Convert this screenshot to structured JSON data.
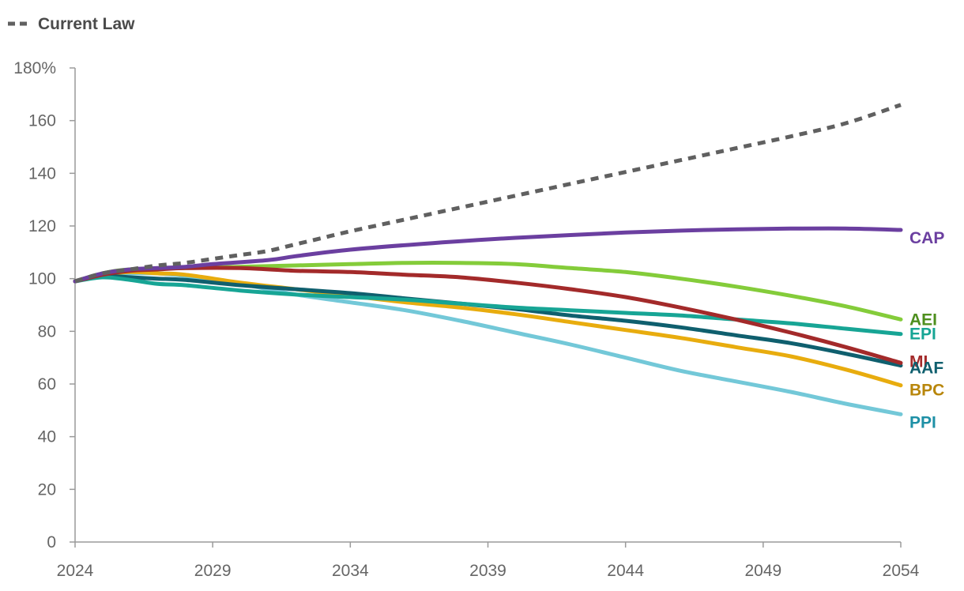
{
  "chart_data": {
    "type": "line",
    "title": "",
    "xlabel": "",
    "ylabel": "",
    "xlim": [
      2024,
      2054
    ],
    "ylim": [
      0,
      180
    ],
    "x_ticks": [
      2024,
      2029,
      2034,
      2039,
      2044,
      2049,
      2054
    ],
    "y_ticks": [
      0,
      20,
      40,
      60,
      80,
      100,
      120,
      140,
      160,
      180
    ],
    "y_tick_labels": [
      "0",
      "20",
      "40",
      "60",
      "80",
      "100",
      "120",
      "140",
      "160",
      "180%"
    ],
    "legend": {
      "position": "top-left",
      "entries": [
        "Current Law"
      ]
    },
    "grid": false,
    "series": [
      {
        "name": "Current Law",
        "color": "#606060",
        "dashed": true,
        "end_label": "",
        "x": [
          2024,
          2025,
          2026,
          2027,
          2028,
          2029,
          2030,
          2031,
          2032,
          2033,
          2034,
          2036,
          2038,
          2040,
          2042,
          2044,
          2046,
          2048,
          2050,
          2052,
          2054
        ],
        "values": [
          99,
          102,
          103.5,
          105,
          106,
          107.5,
          109,
          110.5,
          113,
          115.5,
          118,
          122.5,
          127,
          131.5,
          136,
          140.5,
          145,
          149.5,
          154,
          159,
          166
        ]
      },
      {
        "name": "CAP",
        "color": "#6b3fa0",
        "dashed": false,
        "end_label": "CAP",
        "x": [
          2024,
          2025,
          2026,
          2027,
          2028,
          2029,
          2031,
          2032,
          2034,
          2037,
          2040,
          2044,
          2047,
          2050,
          2052,
          2054
        ],
        "values": [
          99,
          102,
          103.5,
          104,
          104.5,
          105.5,
          107,
          108.5,
          111,
          113.5,
          115.5,
          117.5,
          118.5,
          119,
          119,
          118.5
        ]
      },
      {
        "name": "AEI",
        "color": "#84cc3a",
        "dashed": false,
        "end_label": "AEI",
        "label_color": "#4e8f1e",
        "x": [
          2024,
          2025,
          2026,
          2028,
          2030,
          2032,
          2034,
          2036,
          2038,
          2040,
          2042,
          2044,
          2046,
          2048,
          2050,
          2052,
          2054
        ],
        "values": [
          99,
          102,
          103.5,
          104,
          104.5,
          105,
          105.5,
          106,
          106,
          105.5,
          104,
          102.5,
          100,
          97,
          93.5,
          89.5,
          84.5
        ]
      },
      {
        "name": "EPI",
        "color": "#17a595",
        "dashed": false,
        "end_label": "EPI",
        "x": [
          2024,
          2025,
          2026,
          2027,
          2028,
          2030,
          2032,
          2034,
          2036,
          2038,
          2040,
          2042,
          2044,
          2046,
          2048,
          2050,
          2052,
          2054
        ],
        "values": [
          99,
          100.5,
          99.5,
          98,
          97.5,
          95.5,
          94,
          93,
          92,
          90.5,
          89,
          88,
          87,
          86,
          84.5,
          83,
          81,
          79
        ]
      },
      {
        "name": "MI",
        "color": "#a32a2a",
        "dashed": false,
        "end_label": "MI",
        "x": [
          2024,
          2025,
          2026,
          2027,
          2028,
          2030,
          2032,
          2034,
          2036,
          2038,
          2040,
          2042,
          2044,
          2046,
          2048,
          2050,
          2052,
          2054
        ],
        "values": [
          99,
          101.5,
          103,
          103.5,
          104,
          104,
          103,
          102.5,
          101.5,
          100.5,
          98.5,
          96,
          93,
          89,
          84.5,
          79.5,
          74,
          68
        ]
      },
      {
        "name": "AAF",
        "color": "#0f5f6e",
        "dashed": false,
        "end_label": "AAF",
        "x": [
          2024,
          2025,
          2026,
          2027,
          2028,
          2030,
          2032,
          2034,
          2036,
          2038,
          2040,
          2042,
          2044,
          2046,
          2048,
          2050,
          2052,
          2054
        ],
        "values": [
          99,
          101,
          100.5,
          100,
          99.5,
          97.5,
          96,
          94.5,
          92.5,
          90.5,
          88.5,
          86,
          84,
          81.5,
          78.5,
          75.5,
          71.5,
          67
        ]
      },
      {
        "name": "BPC",
        "color": "#e8ac0e",
        "dashed": false,
        "end_label": "BPC",
        "label_color": "#b8860b",
        "x": [
          2024,
          2025,
          2026,
          2027,
          2028,
          2030,
          2032,
          2034,
          2036,
          2038,
          2040,
          2042,
          2044,
          2046,
          2048,
          2050,
          2052,
          2054
        ],
        "values": [
          99,
          101.5,
          102.5,
          102,
          101.5,
          98.5,
          96,
          93.5,
          91,
          89,
          86.5,
          83.5,
          80.5,
          77.5,
          74,
          70.5,
          65.5,
          59.5
        ]
      },
      {
        "name": "PPI",
        "color": "#73c8d8",
        "dashed": false,
        "end_label": "PPI",
        "label_color": "#1e90a6",
        "x": [
          2024,
          2025,
          2026,
          2027,
          2028,
          2030,
          2032,
          2034,
          2036,
          2038,
          2040,
          2042,
          2044,
          2046,
          2048,
          2050,
          2052,
          2054
        ],
        "values": [
          99,
          101.5,
          102,
          102,
          101,
          98,
          94,
          91,
          88,
          84,
          79.5,
          75,
          70,
          65,
          61,
          57,
          52.5,
          48.5
        ]
      }
    ]
  }
}
